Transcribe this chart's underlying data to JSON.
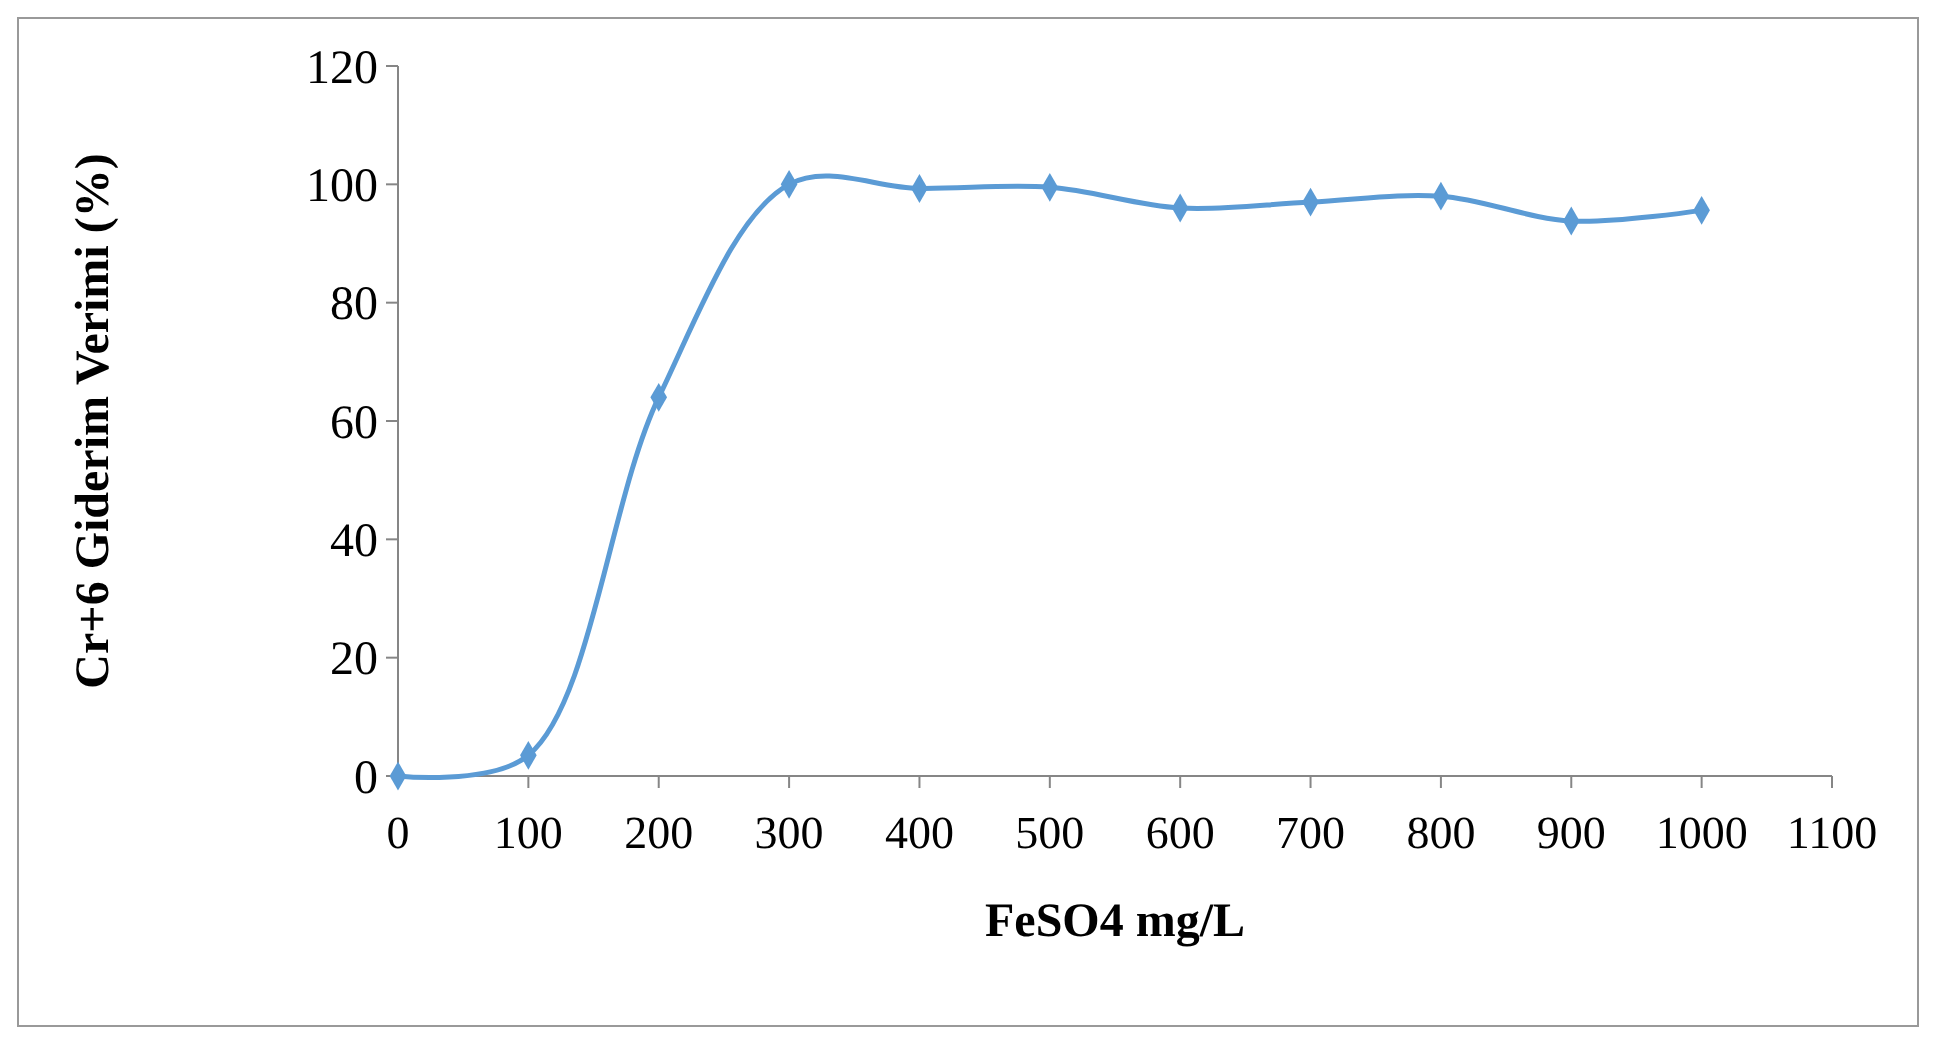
{
  "chart_data": {
    "type": "line",
    "xlabel": "FeSO4 mg/L",
    "ylabel": "Cr+6 Giderim Verimi (%)",
    "x": [
      0,
      100,
      200,
      300,
      400,
      500,
      600,
      700,
      800,
      900,
      1000
    ],
    "series": [
      {
        "color": "#5b9bd5",
        "values": [
          0,
          3.5,
          64,
          100,
          99.3,
          99.5,
          96,
          97,
          98,
          93.8,
          95.6
        ]
      }
    ],
    "xlim": [
      0,
      1100
    ],
    "xticks": [
      0,
      100,
      200,
      300,
      400,
      500,
      600,
      700,
      800,
      900,
      1000,
      1100
    ],
    "ylim": [
      0,
      120
    ],
    "yticks": [
      0,
      20,
      40,
      60,
      80,
      100,
      120
    ],
    "grid": false,
    "marker": "diamond",
    "line_style": "solid"
  }
}
